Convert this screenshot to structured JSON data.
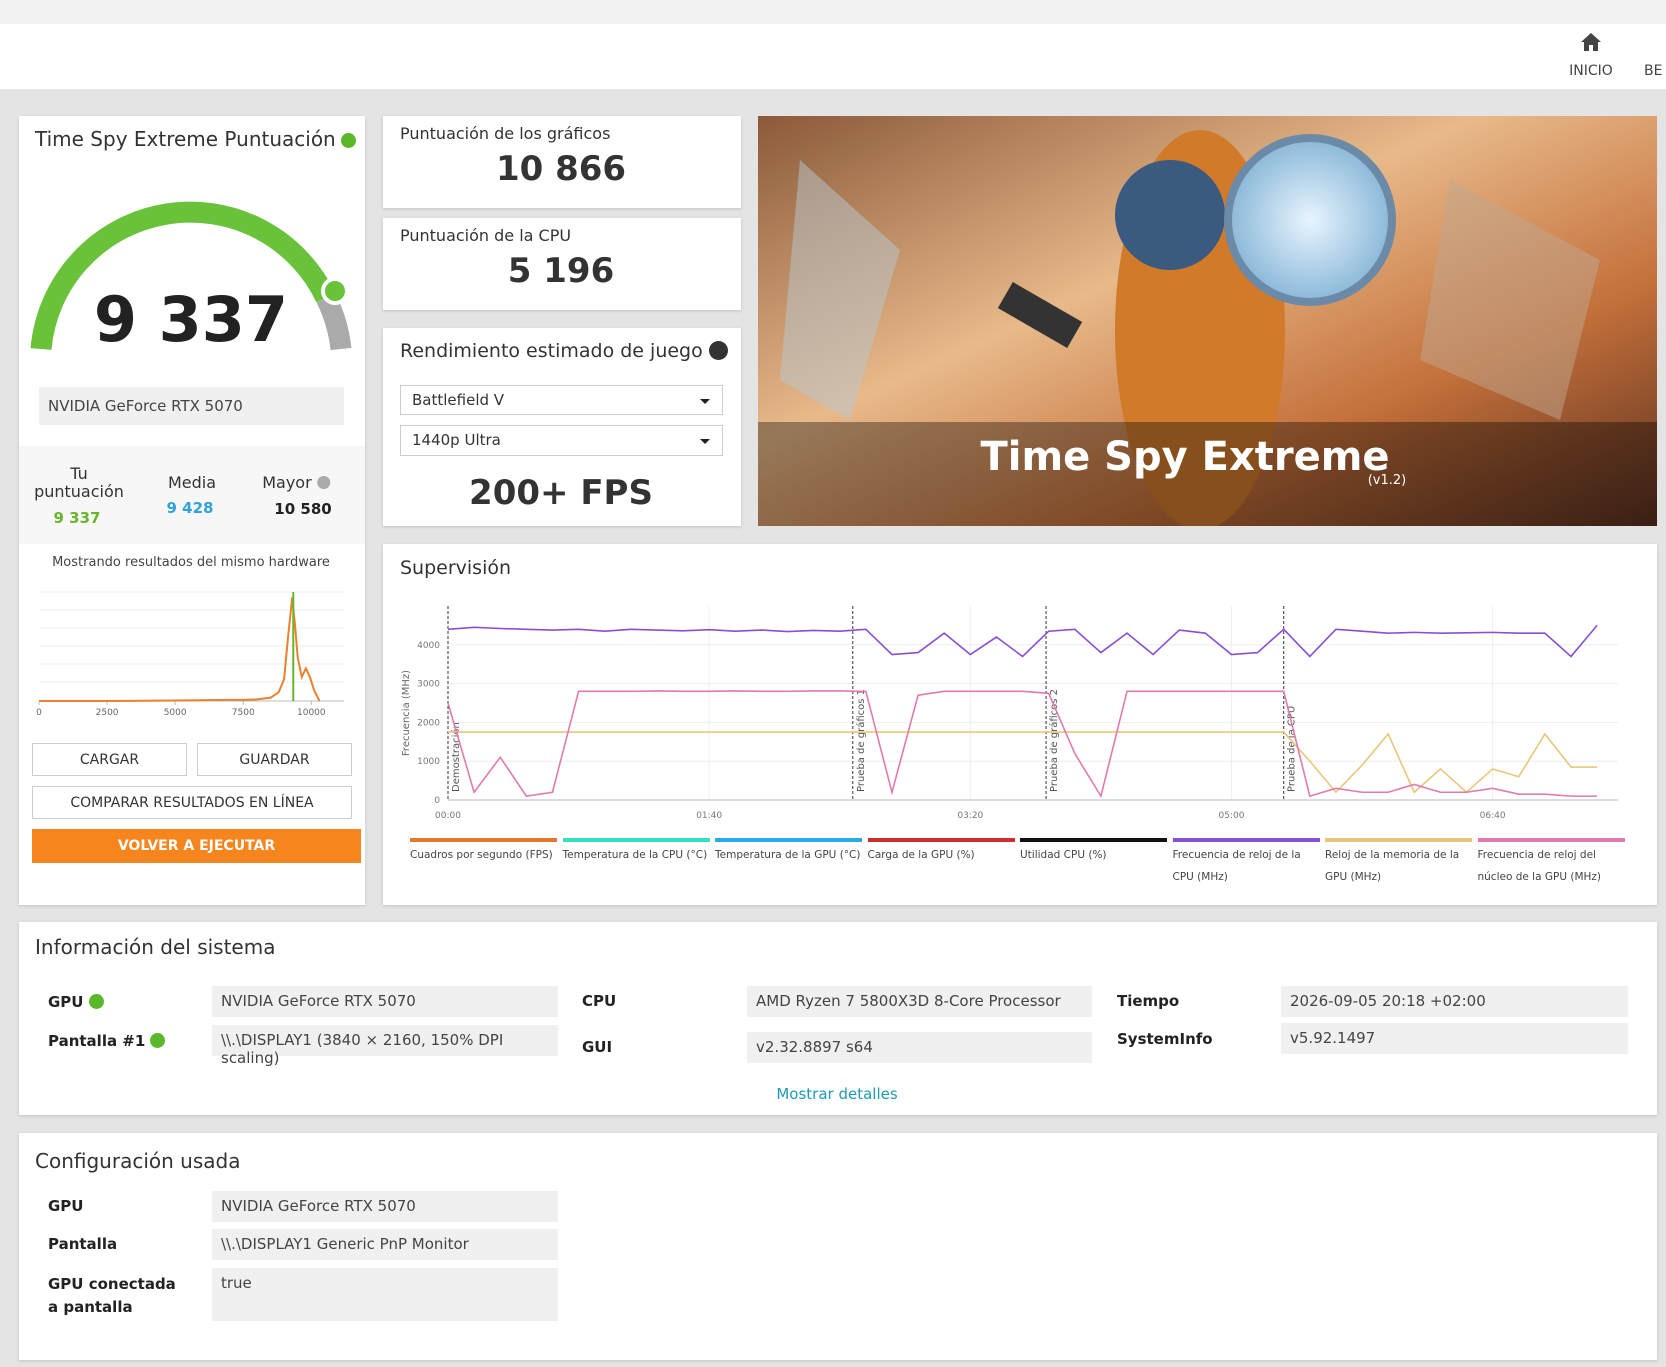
{
  "header": {
    "nav": [
      "INICIO",
      "BE"
    ]
  },
  "score_card": {
    "title": "Time Spy Extreme Puntuación",
    "score": "9 337",
    "gpu": "NVIDIA GeForce RTX 5070",
    "stats": [
      {
        "label": "Tu puntuación",
        "value": "9 337"
      },
      {
        "label": "Media",
        "value": "9 428"
      },
      {
        "label": "Mayor",
        "value": "10 580"
      }
    ],
    "note": "Mostrando resultados del mismo hardware",
    "buttons": [
      "CARGAR",
      "GUARDAR",
      "COMPARAR RESULTADOS EN LÍNEA",
      "VOLVER A EJECUTAR"
    ]
  },
  "distribution_chart": {
    "type": "line",
    "color": "#e8822e",
    "marker_color": "#6ab42a",
    "marker": 9337,
    "x": [
      0,
      2500,
      5000,
      7000,
      7500,
      8000,
      8500,
      8800,
      9000,
      9150,
      9300,
      9400,
      9500,
      9650,
      9800,
      9950,
      10100,
      10300
    ],
    "values": [
      0,
      0,
      0.5,
      1,
      1,
      1.5,
      3,
      8,
      20,
      60,
      95,
      70,
      40,
      22,
      30,
      22,
      10,
      0
    ],
    "xlim": [
      0,
      11200
    ],
    "ylim": [
      0,
      100
    ],
    "xticks": [
      0,
      2500,
      5000,
      7500,
      10000
    ]
  },
  "graphics_score": {
    "label": "Puntuación de los gráficos",
    "value": "10 866"
  },
  "cpu_score": {
    "label": "Puntuación de la CPU",
    "value": "5 196"
  },
  "game_perf": {
    "title": "Rendimiento estimado de juego",
    "game": "Battlefield V",
    "preset": "1440p Ultra",
    "fps": "200+ FPS"
  },
  "banner": {
    "title": "Time Spy Extreme",
    "version": "(v1.2)"
  },
  "monitoring": {
    "title": "Supervisión",
    "type": "line",
    "y_label": "Frecuencia (MHz)",
    "xlim": [
      0,
      448
    ],
    "ylim": [
      0,
      5000
    ],
    "yticks": [
      0,
      1000,
      2000,
      3000,
      4000
    ],
    "xticks": [
      {
        "value": 0,
        "label": "00:00"
      },
      {
        "value": 100,
        "label": "01:40"
      },
      {
        "value": 200,
        "label": "03:20"
      },
      {
        "value": 300,
        "label": "05:00"
      },
      {
        "value": 400,
        "label": "06:40"
      }
    ],
    "sections": [
      {
        "x": 0,
        "label": "Demostración"
      },
      {
        "x": 155,
        "label": "Prueba de gráficos 1"
      },
      {
        "x": 229,
        "label": "Prueba de gráficos 2"
      },
      {
        "x": 320,
        "label": "Prueba de la CPU"
      }
    ],
    "x": [
      0,
      10,
      20,
      30,
      40,
      50,
      60,
      70,
      80,
      90,
      100,
      110,
      120,
      130,
      140,
      150,
      160,
      170,
      180,
      190,
      200,
      210,
      220,
      230,
      240,
      250,
      260,
      270,
      280,
      290,
      300,
      310,
      320,
      330,
      340,
      350,
      360,
      370,
      380,
      390,
      400,
      410,
      420,
      430,
      440
    ],
    "series": [
      {
        "name": "Cuadros por segundo (FPS)",
        "color": "#e8772e"
      },
      {
        "name": "Temperatura de la CPU (°C)",
        "color": "#35e0c0"
      },
      {
        "name": "Temperatura de la GPU (°C)",
        "color": "#2aa8e8"
      },
      {
        "name": "Carga de la GPU (%)",
        "color": "#c8302c"
      },
      {
        "name": "Utilidad CPU (%)",
        "color": "#111111"
      },
      {
        "name": "Frecuencia de reloj de la CPU (MHz)",
        "color": "#8a4fd0",
        "values": [
          4400,
          4450,
          4420,
          4400,
          4380,
          4400,
          4350,
          4400,
          4380,
          4360,
          4390,
          4350,
          4380,
          4340,
          4370,
          4350,
          4400,
          3750,
          3800,
          4300,
          3750,
          4200,
          3700,
          4350,
          4400,
          3800,
          4300,
          3750,
          4380,
          4300,
          3750,
          3800,
          4400,
          3700,
          4400,
          4350,
          4300,
          4320,
          4300,
          4310,
          4320,
          4300,
          4300,
          3700,
          4500
        ]
      },
      {
        "name": "Reloj de la memoria de la GPU (MHz)",
        "color": "#e8c77a",
        "values": [
          1750,
          1750,
          1750,
          1750,
          1750,
          1750,
          1750,
          1750,
          1750,
          1750,
          1750,
          1750,
          1750,
          1750,
          1750,
          1750,
          1750,
          1750,
          1750,
          1750,
          1750,
          1750,
          1750,
          1750,
          1750,
          1750,
          1750,
          1750,
          1750,
          1750,
          1750,
          1750,
          1750,
          1000,
          200,
          900,
          1700,
          200,
          800,
          200,
          800,
          600,
          1700,
          850,
          850
        ]
      },
      {
        "name": "Frecuencia de reloj del núcleo de la GPU (MHz)",
        "color": "#e07ab0",
        "values": [
          2500,
          200,
          1100,
          100,
          200,
          2800,
          2800,
          2800,
          2810,
          2800,
          2800,
          2810,
          2800,
          2800,
          2810,
          2810,
          2800,
          200,
          2700,
          2800,
          2800,
          2800,
          2800,
          2750,
          1200,
          100,
          2800,
          2800,
          2800,
          2800,
          2800,
          2800,
          2800,
          100,
          300,
          200,
          200,
          400,
          200,
          200,
          300,
          150,
          150,
          100,
          100
        ]
      }
    ]
  },
  "system_info": {
    "title": "Información del sistema",
    "rows": [
      [
        "GPU",
        "NVIDIA GeForce RTX 5070"
      ],
      [
        "Pantalla #1",
        "\\\\.\\DISPLAY1 (3840 × 2160, 150% DPI scaling)"
      ],
      [
        "CPU",
        "AMD Ryzen 7 5800X3D 8-Core Processor"
      ],
      [
        "GUI",
        "v2.32.8897 s64"
      ],
      [
        "Tiempo",
        "2026-09-05 20:18 +02:00"
      ],
      [
        "SystemInfo",
        "v5.92.1497"
      ]
    ],
    "link": "Mostrar detalles"
  },
  "config": {
    "title": "Configuración usada",
    "rows": [
      [
        "GPU",
        "NVIDIA GeForce RTX 5070"
      ],
      [
        "Pantalla",
        "\\\\.\\DISPLAY1 Generic PnP Monitor"
      ],
      [
        "GPU conectada a pantalla",
        "true"
      ]
    ]
  }
}
